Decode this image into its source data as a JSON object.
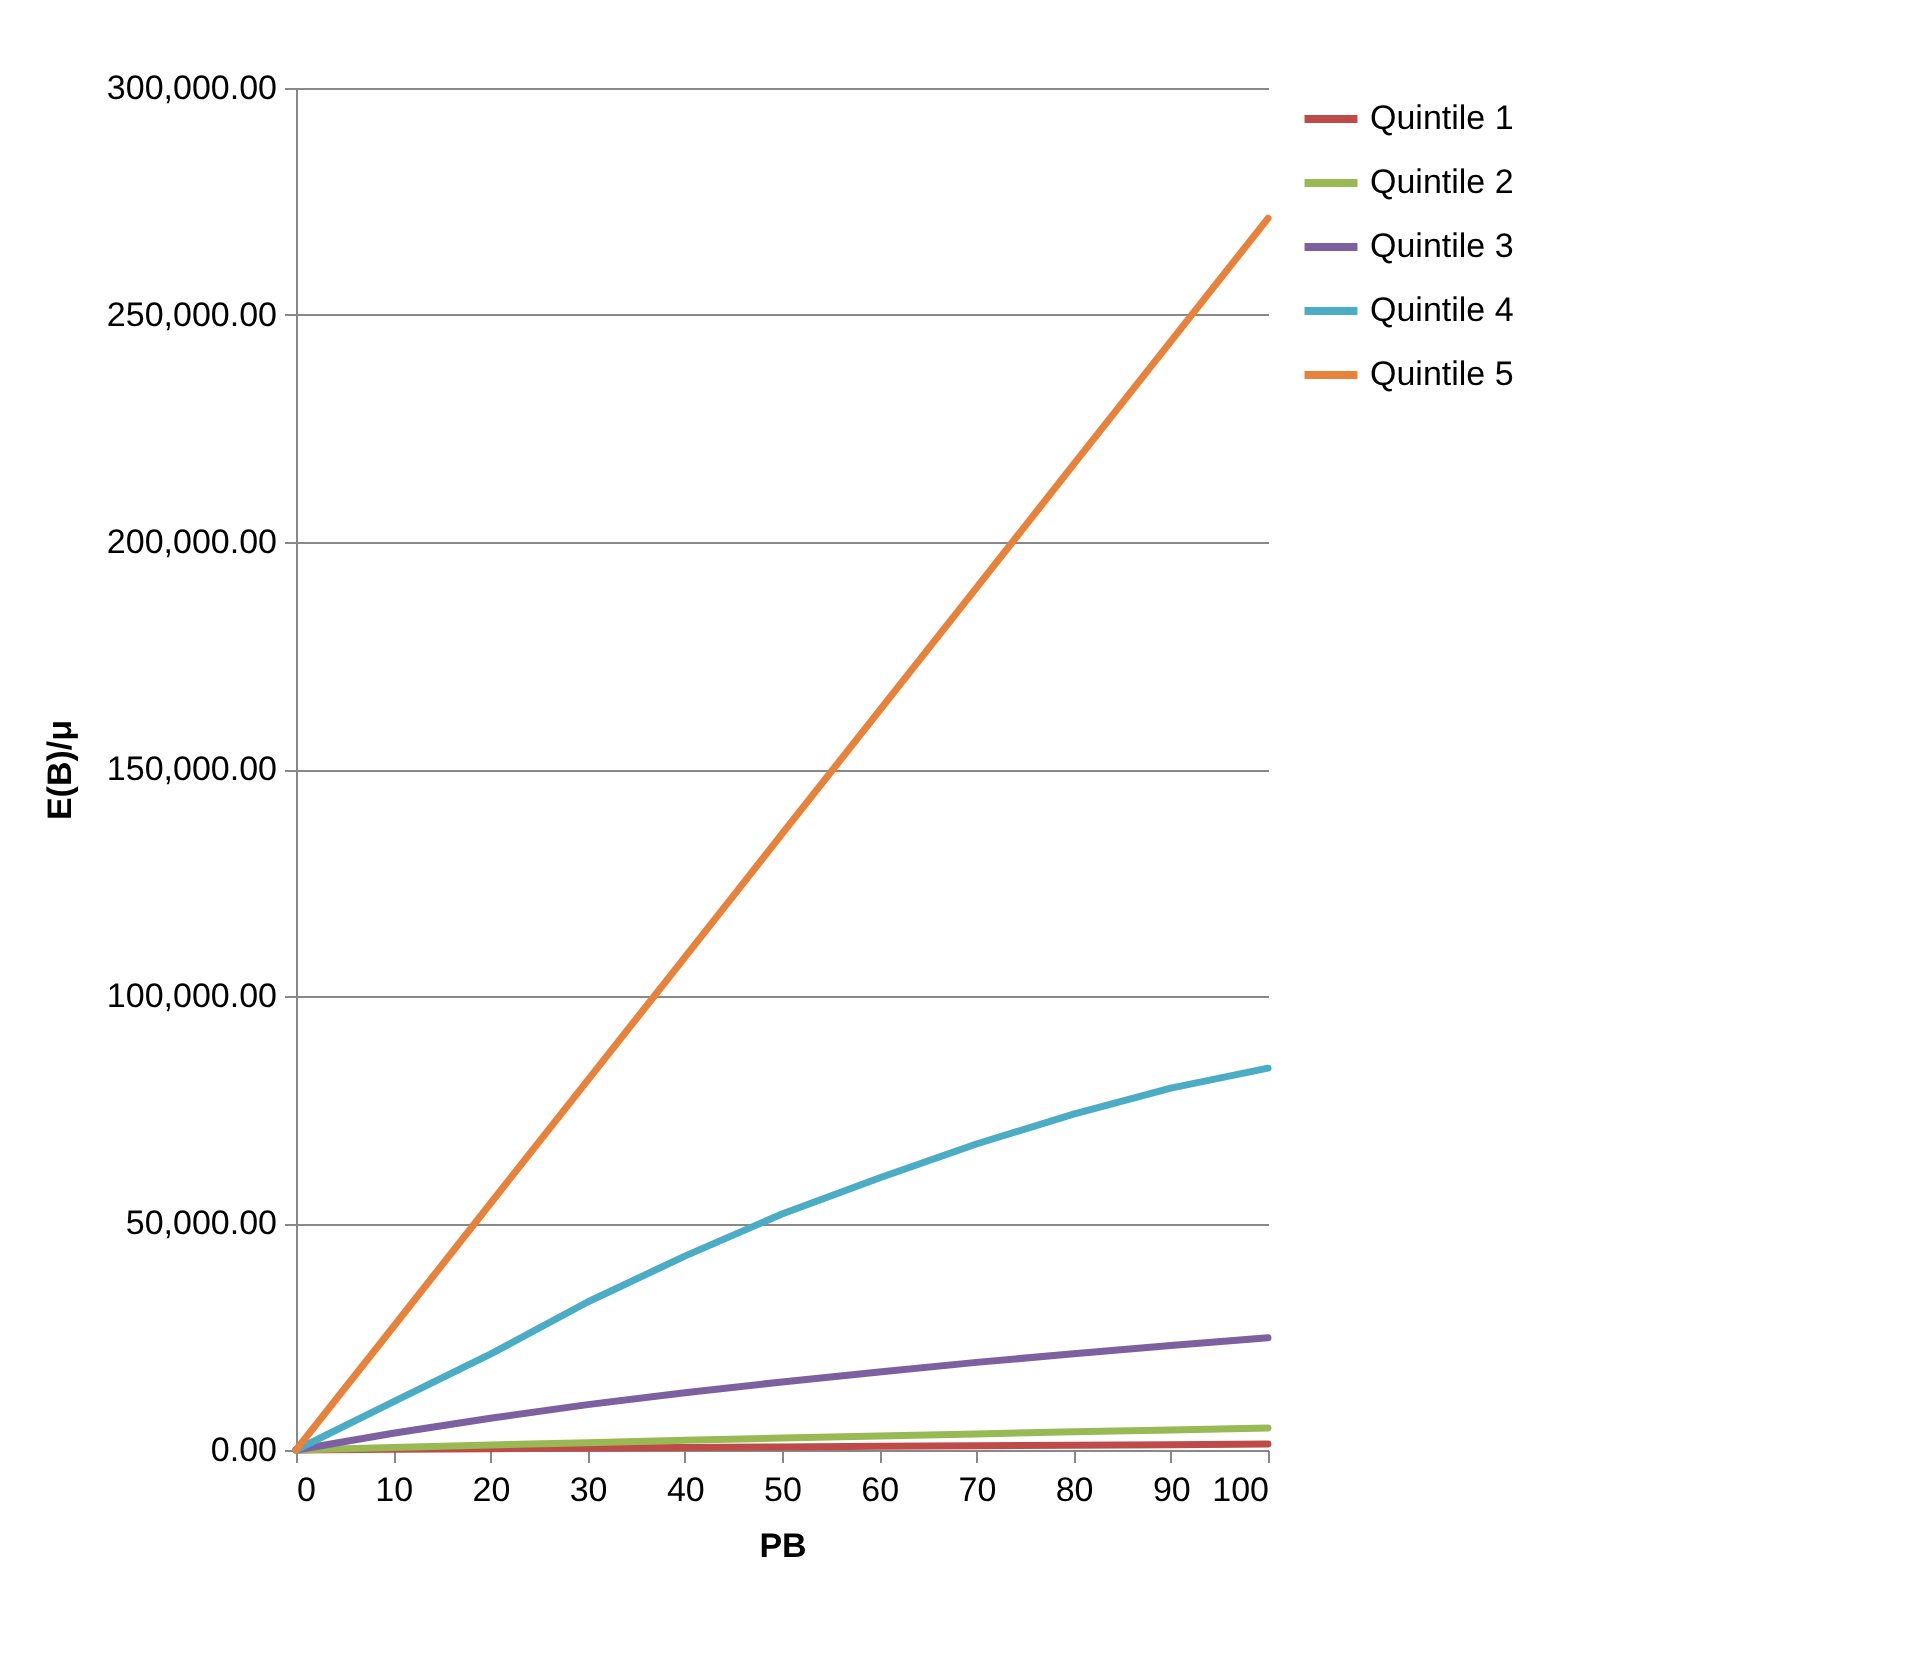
{
  "chart_data": {
    "type": "line",
    "xlabel": "PB",
    "ylabel": "E(B)/μ",
    "x": [
      0,
      10,
      20,
      30,
      40,
      50,
      60,
      70,
      80,
      90,
      100
    ],
    "series": [
      {
        "name": "Quintile 1",
        "color": "#be4b48",
        "values": [
          0,
          150,
          290,
          420,
          550,
          680,
          800,
          920,
          1040,
          1170,
          1300
        ]
      },
      {
        "name": "Quintile 2",
        "color": "#98b954",
        "values": [
          0,
          560,
          1100,
          1620,
          2130,
          2620,
          3100,
          3550,
          4000,
          4430,
          4850
        ]
      },
      {
        "name": "Quintile 3",
        "color": "#7d60a0",
        "values": [
          0,
          3700,
          7000,
          10000,
          12600,
          15000,
          17200,
          19300,
          21200,
          23000,
          24700
        ]
      },
      {
        "name": "Quintile 4",
        "color": "#4aacc5",
        "values": [
          0,
          10600,
          21100,
          32600,
          42700,
          52000,
          59900,
          67400,
          74000,
          79700,
          84100
        ]
      },
      {
        "name": "Quintile 5",
        "color": "#e8823b",
        "values": [
          0,
          27100,
          54300,
          81400,
          108500,
          135700,
          162800,
          189900,
          217100,
          244200,
          271300
        ]
      }
    ],
    "xlim": [
      0,
      100
    ],
    "xticks": [
      0,
      10,
      20,
      30,
      40,
      50,
      60,
      70,
      80,
      90,
      100
    ],
    "ylim": [
      0,
      300000
    ],
    "yticks": [
      {
        "value": 0,
        "label": "0.00"
      },
      {
        "value": 50000,
        "label": "50,000.00"
      },
      {
        "value": 100000,
        "label": "100,000.00"
      },
      {
        "value": 150000,
        "label": "150,000.00"
      },
      {
        "value": 200000,
        "label": "200,000.00"
      },
      {
        "value": 250000,
        "label": "250,000.00"
      },
      {
        "value": 300000,
        "label": "300,000.00"
      }
    ],
    "grid": "y",
    "legend": "right",
    "marker": "none",
    "line_style": "solid"
  }
}
